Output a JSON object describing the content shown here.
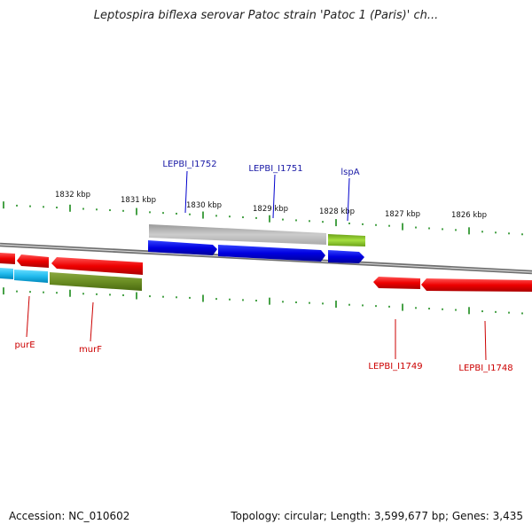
{
  "title": "Leptospira biflexa serovar Patoc strain 'Patoc 1 (Paris)' ch...",
  "footer": {
    "accession": "Accession: NC_010602",
    "stats": "Topology: circular; Length: 3,599,677 bp; Genes: 3,435"
  },
  "scale_labels": [
    "1832 kbp",
    "1831 kbp",
    "1830 kbp",
    "1829 kbp",
    "1828 kbp",
    "1827 kbp",
    "1826 kbp"
  ],
  "genes": [
    {
      "label": "LEPBI_I1752",
      "strand": "forward",
      "color": "#0000dd"
    },
    {
      "label": "LEPBI_I1751",
      "strand": "forward",
      "color": "#0000dd"
    },
    {
      "label": "lspA",
      "strand": "forward",
      "color": "#0000dd"
    },
    {
      "label": "purE",
      "strand": "reverse",
      "color": "#dd0000"
    },
    {
      "label": "murF",
      "strand": "reverse",
      "color": "#dd0000"
    },
    {
      "label": "LEPBI_I1749",
      "strand": "reverse",
      "color": "#dd0000"
    },
    {
      "label": "LEPBI_I1748",
      "strand": "reverse",
      "color": "#dd0000"
    }
  ],
  "colors": {
    "forward_cds": "#0000ee",
    "reverse_cds": "#ee0000",
    "forward_label": "#1a1aa6",
    "reverse_label": "#cc0000",
    "gray_feature": "#bbbbbb",
    "green_feature": "#88cc22",
    "olive_feature": "#6b8e23",
    "cyan_feature": "#22bbee",
    "tick": "#1a8a1a",
    "backbone": "#888888"
  }
}
